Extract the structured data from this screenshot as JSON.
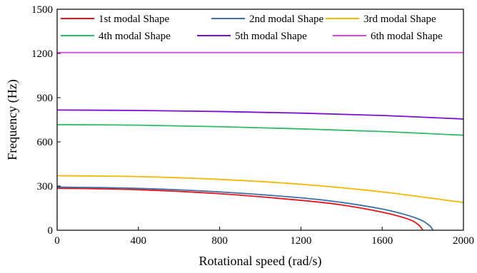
{
  "chart_data": {
    "type": "line",
    "title": "",
    "xlabel": "Rotational speed (rad/s)",
    "ylabel": "Frequency (Hz)",
    "xlim": [
      0,
      2000
    ],
    "ylim": [
      0,
      1500
    ],
    "xticks": [
      0,
      400,
      800,
      1200,
      1600,
      2000
    ],
    "yticks": [
      0,
      300,
      600,
      900,
      1200,
      1500
    ],
    "grid": false,
    "legend_position": "top",
    "series": [
      {
        "name": "1st modal Shape",
        "color": "#e8141c",
        "x": [
          0,
          400,
          800,
          1200,
          1400,
          1600,
          1700,
          1750,
          1780,
          1790,
          1800
        ],
        "y": [
          285,
          275,
          248,
          203,
          172,
          123,
          88,
          63,
          35,
          20,
          0
        ]
      },
      {
        "name": "2nd modal Shape",
        "color": "#3a6fa8",
        "x": [
          0,
          400,
          800,
          1200,
          1400,
          1600,
          1700,
          1760,
          1800,
          1830,
          1840,
          1850
        ],
        "y": [
          293,
          284,
          260,
          220,
          189,
          144,
          111,
          86,
          63,
          35,
          22,
          0
        ]
      },
      {
        "name": "3rd modal Shape",
        "color": "#f5b800",
        "x": [
          0,
          400,
          800,
          1200,
          1600,
          2000
        ],
        "y": [
          370,
          364,
          345,
          312,
          260,
          188
        ]
      },
      {
        "name": "4th modal Shape",
        "color": "#2dbb63",
        "x": [
          0,
          400,
          800,
          1200,
          1600,
          2000
        ],
        "y": [
          717,
          713,
          703,
          688,
          670,
          645
        ]
      },
      {
        "name": "5th modal Shape",
        "color": "#7b0fd0",
        "x": [
          0,
          400,
          800,
          1200,
          1600,
          2000
        ],
        "y": [
          816,
          813,
          806,
          795,
          779,
          755
        ]
      },
      {
        "name": "6th modal Shape",
        "color": "#e040f0",
        "x": [
          0,
          400,
          800,
          1200,
          1600,
          2000
        ],
        "y": [
          1206,
          1206,
          1206,
          1206,
          1206,
          1206
        ]
      }
    ]
  }
}
